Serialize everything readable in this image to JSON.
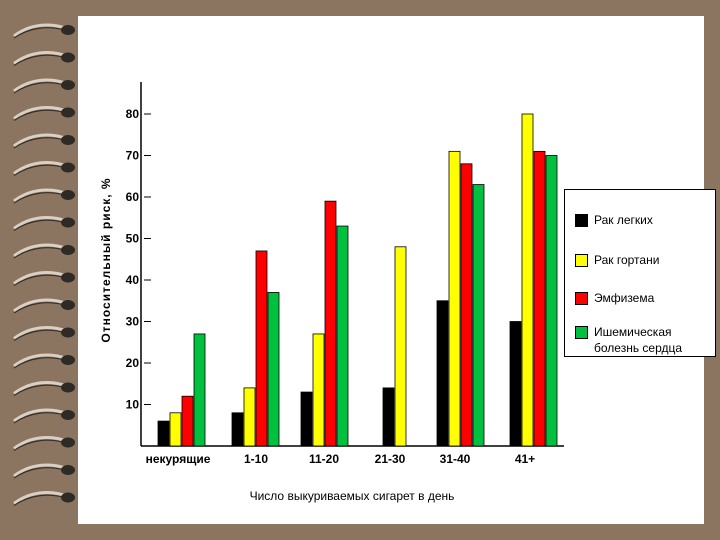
{
  "chart_data": {
    "type": "bar",
    "title": "",
    "ylabel": "Относительный риск, %",
    "xlabel": "Число выкуриваемых сигарет в день",
    "ylim": [
      0,
      80
    ],
    "yticks": [
      "10",
      "20",
      "30",
      "40",
      "50",
      "60",
      "70",
      "80"
    ],
    "categories": [
      "некурящие",
      "1-10",
      "11-20",
      "21-30",
      "31-40",
      "41+"
    ],
    "series": [
      {
        "name": "Рак легких",
        "color": "#000000",
        "values": [
          6,
          8,
          13,
          14,
          35,
          30
        ]
      },
      {
        "name": "Рак гортани",
        "color": "#ffff00",
        "values": [
          8,
          14,
          27,
          48,
          71,
          80
        ]
      },
      {
        "name": "Эмфизема",
        "color": "#ff0000",
        "values": [
          12,
          47,
          59,
          null,
          68,
          71
        ]
      },
      {
        "name": "Ишемическая болезнь сердца",
        "color": "#00c040",
        "values": [
          27,
          37,
          53,
          null,
          63,
          70
        ]
      }
    ],
    "legend_position": "right",
    "grid": false
  }
}
